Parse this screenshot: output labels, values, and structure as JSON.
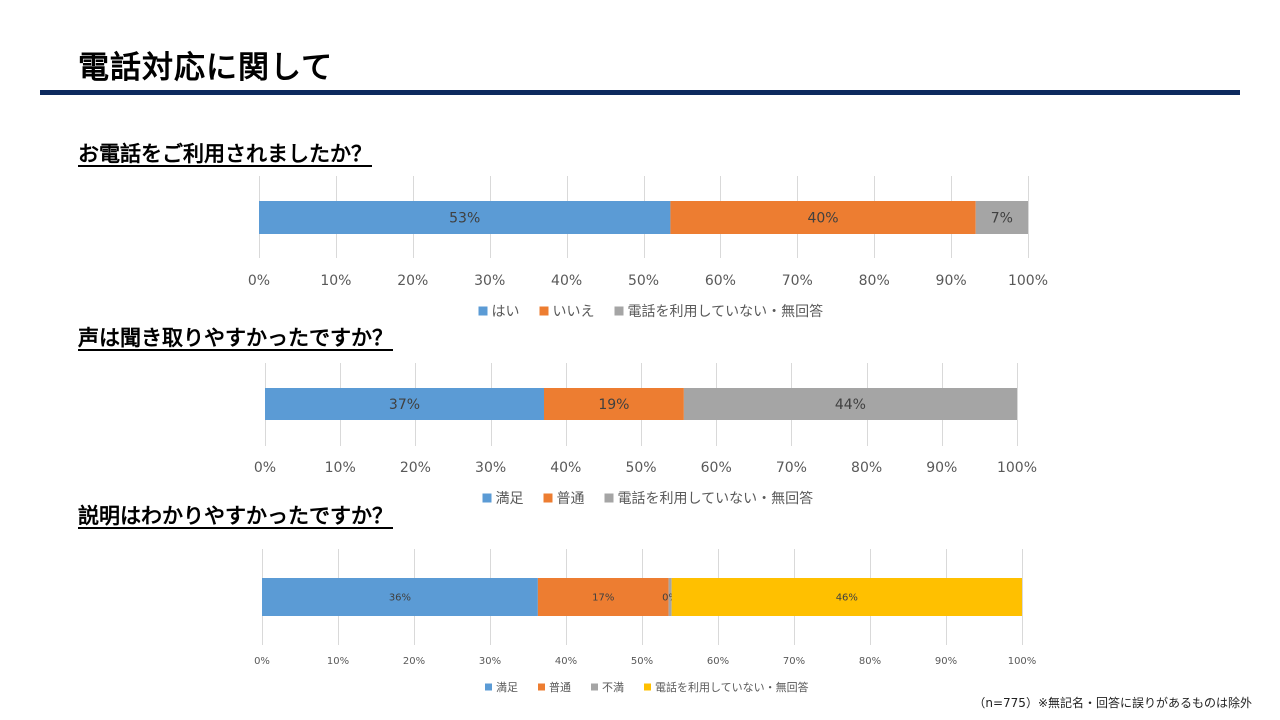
{
  "page": {
    "title": "電話対応に関して",
    "footnote": "（n=775）※無記名・回答に誤りがあるものは除外"
  },
  "colors": {
    "title_rule": "#0d2a5e",
    "blue": "#5b9bd5",
    "orange": "#ed7d31",
    "gray": "#a5a5a5",
    "yellow": "#ffc000"
  },
  "chart_data": [
    {
      "type": "bar",
      "orientation": "horizontal",
      "stacked": true,
      "title": "お電話をご利用されましたか？",
      "xlim": [
        0,
        100
      ],
      "ticks": [
        "0%",
        "10%",
        "20%",
        "30%",
        "40%",
        "50%",
        "60%",
        "70%",
        "80%",
        "90%",
        "100%"
      ],
      "grid": true,
      "legend_position": "bottom",
      "series": [
        {
          "name": "はい",
          "value": 53.5,
          "label": "53%",
          "color": "#5b9bd5"
        },
        {
          "name": "いいえ",
          "value": 39.7,
          "label": "40%",
          "color": "#ed7d31"
        },
        {
          "name": "電話を利用していない・無回答",
          "value": 6.8,
          "label": "7%",
          "color": "#a5a5a5"
        }
      ]
    },
    {
      "type": "bar",
      "orientation": "horizontal",
      "stacked": true,
      "title": "声は聞き取りやすかったですか？",
      "xlim": [
        0,
        100
      ],
      "ticks": [
        "0%",
        "10%",
        "20%",
        "30%",
        "40%",
        "50%",
        "60%",
        "70%",
        "80%",
        "90%",
        "100%"
      ],
      "grid": true,
      "legend_position": "bottom",
      "series": [
        {
          "name": "満足",
          "value": 37.1,
          "label": "37%",
          "color": "#5b9bd5"
        },
        {
          "name": "普通",
          "value": 18.6,
          "label": "19%",
          "color": "#ed7d31"
        },
        {
          "name": "電話を利用していない・無回答",
          "value": 44.3,
          "label": "44%",
          "color": "#a5a5a5"
        }
      ]
    },
    {
      "type": "bar",
      "orientation": "horizontal",
      "stacked": true,
      "title": "説明はわかりやすかったですか？",
      "xlim": [
        0,
        100
      ],
      "ticks": [
        "0%",
        "10%",
        "20%",
        "30%",
        "40%",
        "50%",
        "60%",
        "70%",
        "80%",
        "90%",
        "100%"
      ],
      "grid": true,
      "legend_position": "bottom",
      "series": [
        {
          "name": "満足",
          "value": 36.3,
          "label": "36%",
          "color": "#5b9bd5"
        },
        {
          "name": "普通",
          "value": 17.2,
          "label": "17%",
          "color": "#ed7d31"
        },
        {
          "name": "不満",
          "value": 0.4,
          "label": "0%",
          "color": "#a5a5a5"
        },
        {
          "name": "電話を利用していない・無回答",
          "value": 46.1,
          "label": "46%",
          "color": "#ffc000"
        }
      ]
    }
  ]
}
